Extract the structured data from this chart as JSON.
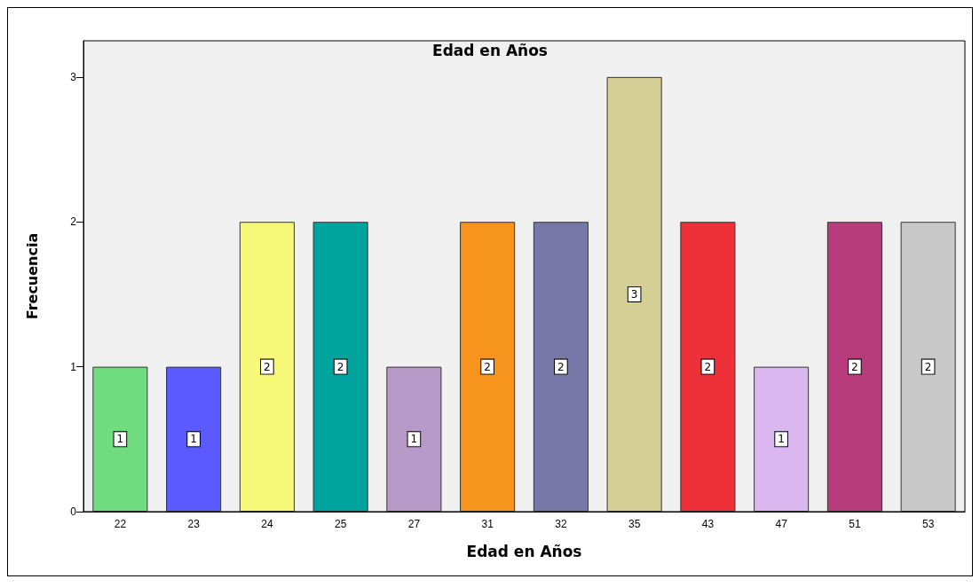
{
  "chart_data": {
    "type": "bar",
    "title": "Edad en Años",
    "xlabel": "Edad en Años",
    "ylabel": "Frecuencia",
    "categories": [
      "22",
      "23",
      "24",
      "25",
      "27",
      "31",
      "32",
      "35",
      "43",
      "47",
      "51",
      "53"
    ],
    "values": [
      1,
      1,
      2,
      2,
      1,
      2,
      2,
      3,
      2,
      1,
      2,
      2
    ],
    "colors": [
      "#6fdc7f",
      "#5a5aff",
      "#f8f878",
      "#00a39e",
      "#b89ac8",
      "#f7941e",
      "#7878a8",
      "#d4cf94",
      "#ee3138",
      "#dab8ef",
      "#b83c7c",
      "#c8c8c8"
    ],
    "ylim": [
      0,
      3.25
    ],
    "yticks": [
      0,
      1,
      2,
      3
    ],
    "grid": false,
    "data_labels": true
  }
}
